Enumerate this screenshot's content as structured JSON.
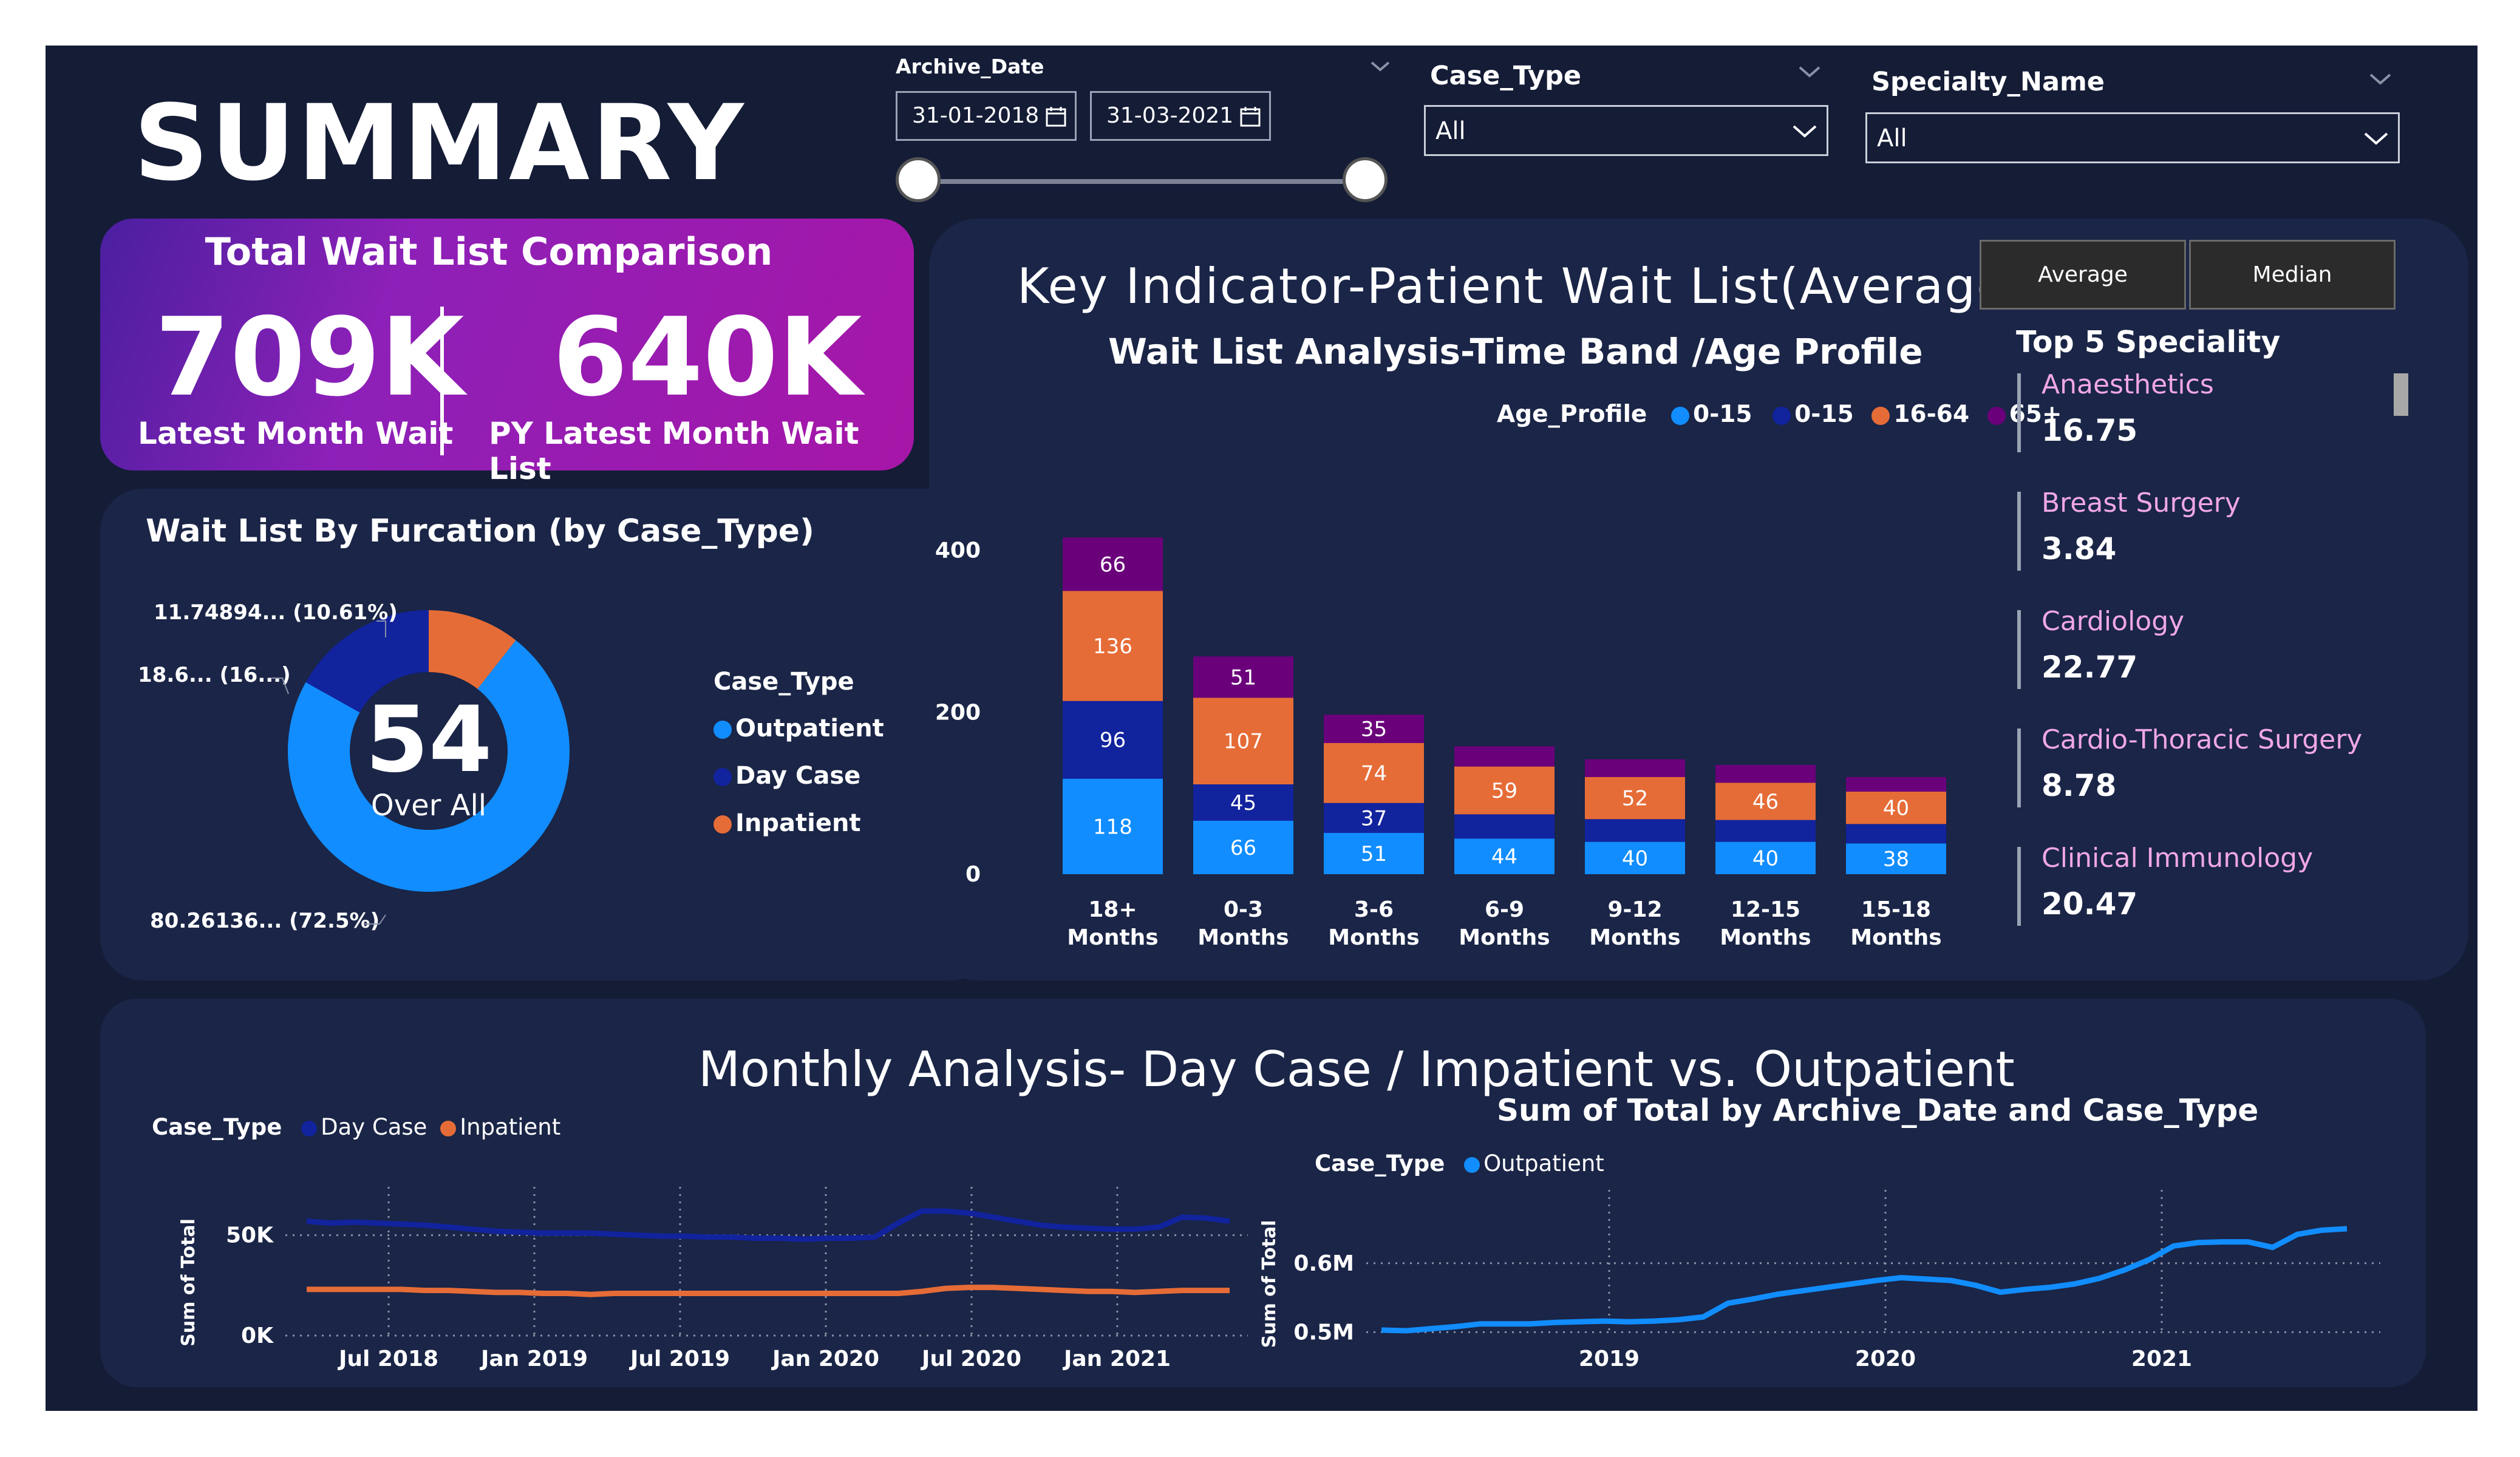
{
  "page": {
    "title": "SUMMARY"
  },
  "filters": {
    "archive_date": {
      "label": "Archive_Date",
      "start": "31-01-2018",
      "end": "31-03-2021"
    },
    "case_type": {
      "label": "Case_Type",
      "value": "All"
    },
    "specialty": {
      "label": "Specialty_Name",
      "value": "All"
    }
  },
  "kpi": {
    "title": "Total Wait List Comparison",
    "latest_value": "709K",
    "latest_label": "Latest Month Wait",
    "py_value": "640K",
    "py_label": "PY Latest Month Wait List"
  },
  "toggle": {
    "average": "Average",
    "median": "Median"
  },
  "key_indicator": {
    "title": "Key Indicator-Patient Wait List(Average)",
    "subtitle": "Wait List Analysis-Time Band /Age Profile"
  },
  "top5": {
    "title": "Top 5 Speciality",
    "items": [
      {
        "name": "Anaesthetics",
        "value": "16.75"
      },
      {
        "name": "Breast Surgery",
        "value": "3.84"
      },
      {
        "name": "Cardiology",
        "value": "22.77"
      },
      {
        "name": "Cardio-Thoracic Surgery",
        "value": "8.78"
      },
      {
        "name": "Clinical Immunology",
        "value": "20.47"
      }
    ]
  },
  "donut_panel": {
    "title": "Wait List By Furcation (by Case_Type)"
  },
  "monthly": {
    "title": "Monthly Analysis- Day Case / Impatient vs. Outpatient",
    "subtitle": "Sum of Total by Archive_Date and Case_Type"
  },
  "colors": {
    "outpatient": "#118dff",
    "day_case": "#12239e",
    "inpatient": "#e66c37",
    "age_65": "#6b007b",
    "age_0_15_light": "#118dff"
  },
  "chart_data": [
    {
      "type": "pie",
      "donut": true,
      "center_value": "54",
      "center_label": "Over All",
      "legend_title": "Case_Type",
      "categories": [
        "Outpatient",
        "Day Case",
        "Inpatient"
      ],
      "values": [
        72.5,
        16.89,
        10.61
      ],
      "slice_labels": [
        "80.26136... (72.5%)",
        "18.6... (16...)",
        "11.74894... (10.61%)"
      ]
    },
    {
      "type": "bar",
      "stacked": true,
      "legend_title": "Age_Profile",
      "categories": [
        "18+ Months",
        "0-3 Months",
        "3-6 Months",
        "6-9 Months",
        "9-12 Months",
        "12-15 Months",
        "15-18 Months"
      ],
      "series": [
        {
          "name": "0-15",
          "values": [
            118,
            66,
            51,
            44,
            40,
            40,
            38
          ]
        },
        {
          "name": "0-15",
          "values": [
            96,
            45,
            37,
            30,
            28,
            27,
            24
          ]
        },
        {
          "name": "16-64",
          "values": [
            136,
            107,
            74,
            59,
            52,
            46,
            40
          ]
        },
        {
          "name": "65+",
          "values": [
            66,
            51,
            35,
            25,
            22,
            22,
            18
          ]
        }
      ],
      "yticks": [
        "0",
        "200",
        "400"
      ],
      "ylim": [
        0,
        420
      ]
    },
    {
      "type": "line",
      "legend_title": "Case_Type",
      "ylabel": "Sum of Total",
      "xticks": [
        "Jul 2018",
        "Jan 2019",
        "Jul 2019",
        "Jan 2020",
        "Jul 2020",
        "Jan 2021"
      ],
      "yticks": [
        "0K",
        "50K"
      ],
      "ylim": [
        0,
        65000
      ],
      "series": [
        {
          "name": "Day Case",
          "values": [
            57000,
            56000,
            56500,
            56000,
            55500,
            55000,
            54000,
            53000,
            52000,
            51500,
            51000,
            51000,
            51000,
            50500,
            50000,
            49500,
            49500,
            49000,
            49000,
            48500,
            48500,
            48000,
            48500,
            48500,
            49000,
            56000,
            62000,
            62000,
            61000,
            59000,
            57000,
            55000,
            54000,
            53500,
            53000,
            53000,
            54000,
            59000,
            58500,
            57000
          ]
        },
        {
          "name": "Inpatient",
          "values": [
            23000,
            23000,
            23000,
            23000,
            23000,
            22500,
            22500,
            22000,
            21500,
            21500,
            21000,
            21000,
            20500,
            21000,
            21000,
            21000,
            21000,
            21000,
            21000,
            21000,
            21000,
            21000,
            21000,
            21000,
            21000,
            21000,
            22000,
            23500,
            24000,
            24000,
            23500,
            23000,
            22500,
            22000,
            22000,
            21500,
            22000,
            22500,
            22500,
            22500
          ]
        }
      ]
    },
    {
      "type": "line",
      "legend_title": "Case_Type",
      "ylabel": "Sum of Total",
      "xticks": [
        "2019",
        "2020",
        "2021"
      ],
      "yticks": [
        "0.5M",
        "0.6M"
      ],
      "ylim": [
        0.495,
        0.68
      ],
      "series": [
        {
          "name": "Outpatient",
          "values": [
            0.503,
            0.502,
            0.505,
            0.508,
            0.512,
            0.512,
            0.512,
            0.514,
            0.515,
            0.516,
            0.515,
            0.516,
            0.518,
            0.522,
            0.542,
            0.548,
            0.555,
            0.56,
            0.565,
            0.57,
            0.575,
            0.579,
            0.577,
            0.575,
            0.568,
            0.558,
            0.562,
            0.565,
            0.57,
            0.578,
            0.59,
            0.605,
            0.625,
            0.63,
            0.631,
            0.631,
            0.623,
            0.642,
            0.648,
            0.65
          ]
        }
      ]
    }
  ]
}
